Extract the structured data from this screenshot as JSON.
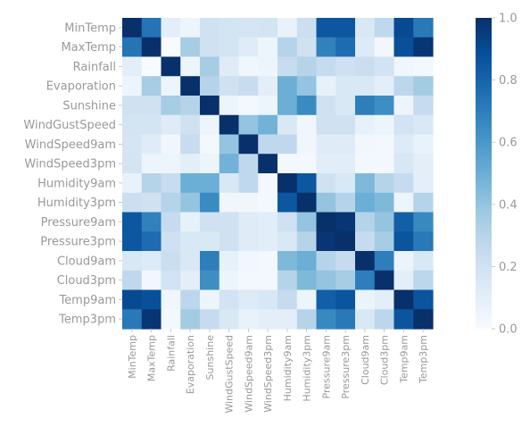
{
  "chart_data": {
    "type": "heatmap",
    "title": "",
    "xlabel": "",
    "ylabel": "",
    "categories": [
      "MinTemp",
      "MaxTemp",
      "Rainfall",
      "Evaporation",
      "Sunshine",
      "WindGustSpeed",
      "WindSpeed9am",
      "WindSpeed3pm",
      "Humidity9am",
      "Humidity3pm",
      "Pressure9am",
      "Pressure3pm",
      "Cloud9am",
      "Cloud3pm",
      "Temp9am",
      "Temp3pm"
    ],
    "values": [
      [
        1.0,
        0.74,
        0.1,
        0.05,
        0.2,
        0.18,
        0.17,
        0.18,
        0.07,
        0.22,
        0.85,
        0.85,
        0.15,
        0.27,
        0.9,
        0.72
      ],
      [
        0.74,
        1.0,
        0.0,
        0.35,
        0.2,
        0.18,
        0.12,
        0.05,
        0.3,
        0.2,
        0.69,
        0.77,
        0.13,
        0.03,
        0.88,
        0.98
      ],
      [
        0.1,
        0.0,
        1.0,
        0.05,
        0.35,
        0.12,
        0.04,
        0.05,
        0.24,
        0.3,
        0.25,
        0.21,
        0.23,
        0.19,
        0.04,
        0.02
      ],
      [
        0.05,
        0.35,
        0.05,
        1.0,
        0.3,
        0.2,
        0.24,
        0.1,
        0.5,
        0.4,
        0.08,
        0.15,
        0.15,
        0.1,
        0.28,
        0.36
      ],
      [
        0.2,
        0.2,
        0.35,
        0.3,
        1.0,
        0.05,
        0.02,
        0.05,
        0.5,
        0.65,
        0.2,
        0.15,
        0.7,
        0.64,
        0.05,
        0.25
      ],
      [
        0.18,
        0.18,
        0.12,
        0.2,
        0.05,
        1.0,
        0.4,
        0.48,
        0.15,
        0.04,
        0.2,
        0.2,
        0.08,
        0.05,
        0.19,
        0.15
      ],
      [
        0.17,
        0.12,
        0.04,
        0.24,
        0.02,
        0.4,
        1.0,
        0.27,
        0.27,
        0.04,
        0.12,
        0.12,
        0.03,
        0.02,
        0.13,
        0.07
      ],
      [
        0.18,
        0.05,
        0.05,
        0.1,
        0.05,
        0.48,
        0.27,
        1.0,
        0.02,
        0.02,
        0.11,
        0.11,
        0.02,
        0.02,
        0.16,
        0.1
      ],
      [
        0.07,
        0.3,
        0.24,
        0.5,
        0.5,
        0.15,
        0.27,
        0.02,
        1.0,
        0.85,
        0.2,
        0.15,
        0.45,
        0.3,
        0.25,
        0.1
      ],
      [
        0.22,
        0.2,
        0.3,
        0.4,
        0.65,
        0.04,
        0.04,
        0.02,
        0.85,
        1.0,
        0.4,
        0.3,
        0.5,
        0.45,
        0.05,
        0.3
      ],
      [
        0.85,
        0.69,
        0.25,
        0.08,
        0.2,
        0.2,
        0.12,
        0.11,
        0.2,
        0.4,
        1.0,
        0.98,
        0.3,
        0.4,
        0.82,
        0.66
      ],
      [
        0.85,
        0.77,
        0.21,
        0.15,
        0.15,
        0.2,
        0.12,
        0.11,
        0.15,
        0.3,
        0.98,
        1.0,
        0.25,
        0.35,
        0.86,
        0.72
      ],
      [
        0.15,
        0.13,
        0.23,
        0.15,
        0.7,
        0.08,
        0.03,
        0.02,
        0.45,
        0.5,
        0.3,
        0.25,
        1.0,
        0.7,
        0.06,
        0.15
      ],
      [
        0.27,
        0.03,
        0.19,
        0.1,
        0.64,
        0.05,
        0.02,
        0.02,
        0.3,
        0.45,
        0.4,
        0.35,
        0.7,
        1.0,
        0.1,
        0.28
      ],
      [
        0.9,
        0.88,
        0.04,
        0.28,
        0.05,
        0.19,
        0.13,
        0.16,
        0.25,
        0.05,
        0.82,
        0.86,
        0.06,
        0.1,
        1.0,
        0.86
      ],
      [
        0.72,
        0.98,
        0.02,
        0.36,
        0.25,
        0.15,
        0.07,
        0.1,
        0.1,
        0.3,
        0.66,
        0.72,
        0.15,
        0.28,
        0.86,
        1.0
      ]
    ],
    "colorbar": {
      "range": [
        0.0,
        1.0
      ],
      "ticks": [
        "0.0",
        "0.2",
        "0.4",
        "0.6",
        "0.8",
        "1.0"
      ],
      "colormap": "Blues"
    },
    "colors": {
      "low": "#f7fbff",
      "high": "#08306b",
      "tick_text": "#999999"
    }
  }
}
